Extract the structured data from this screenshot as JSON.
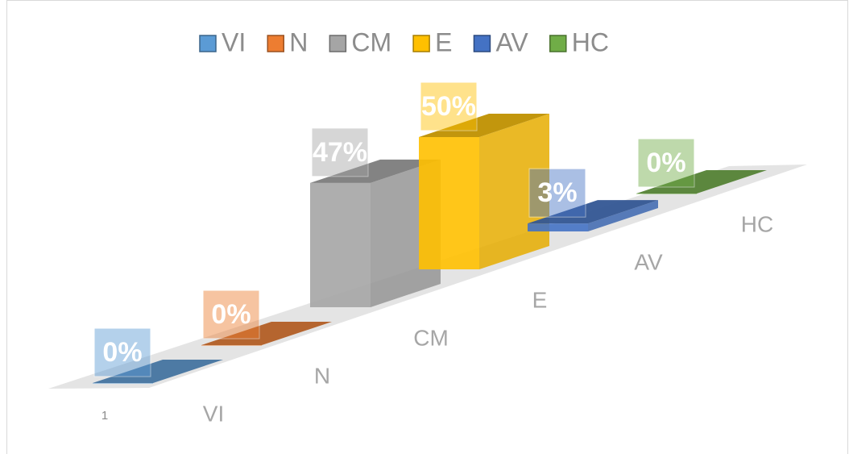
{
  "chart_data": {
    "type": "bar3d",
    "categories": [
      "1"
    ],
    "series": [
      {
        "name": "VI",
        "color": "#5b9bd5",
        "values": [
          0
        ],
        "value_labels": [
          "0%"
        ]
      },
      {
        "name": "N",
        "color": "#ed7d31",
        "values": [
          0
        ],
        "value_labels": [
          "0%"
        ]
      },
      {
        "name": "CM",
        "color": "#a5a5a5",
        "values": [
          47
        ],
        "value_labels": [
          "47%"
        ]
      },
      {
        "name": "E",
        "color": "#ffc000",
        "values": [
          50
        ],
        "value_labels": [
          "50%"
        ]
      },
      {
        "name": "AV",
        "color": "#4472c4",
        "values": [
          3
        ],
        "value_labels": [
          "3%"
        ]
      },
      {
        "name": "HC",
        "color": "#70ad47",
        "values": [
          0
        ],
        "value_labels": [
          "0%"
        ]
      }
    ],
    "legend": "top"
  }
}
